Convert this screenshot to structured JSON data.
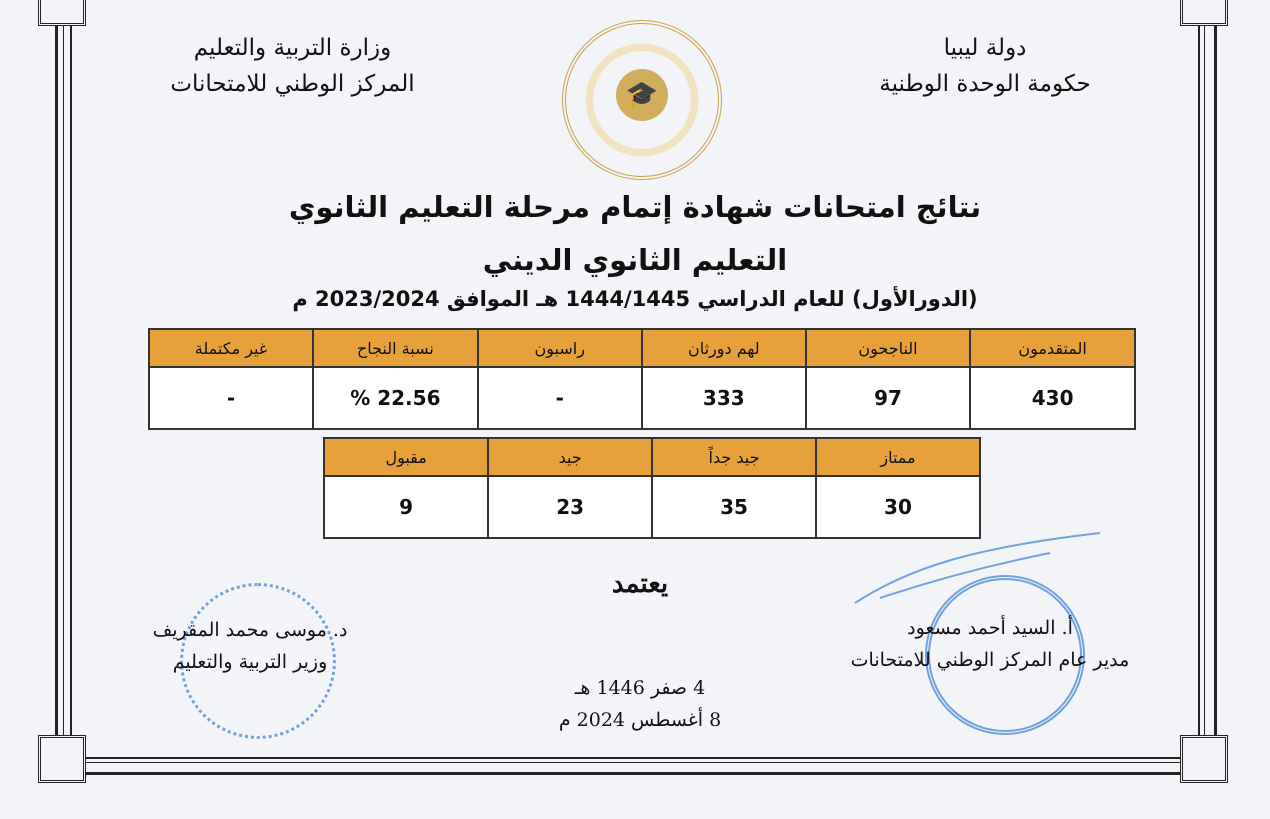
{
  "header_right": {
    "line1": "دولة ليبيا",
    "line2": "حكومة الوحدة الوطنية"
  },
  "header_left": {
    "line1": "وزارة التربية والتعليم",
    "line2": "المركز الوطني للامتحانات"
  },
  "title": {
    "line1": "نتائج امتحانات شهادة إتمام مرحلة التعليم الثانوي",
    "line2": "التعليم الثانوي الديني",
    "line3": "(الدورالأول) للعام الدراسي 1444/1445 هـ الموافق 2023/2024 م"
  },
  "results_table": {
    "headers": [
      "المتقدمون",
      "الناجحون",
      "لهم دورثان",
      "راسبون",
      "نسبة النجاح",
      "غير مكتملة"
    ],
    "values": [
      "430",
      "97",
      "333",
      "-",
      "22.56  %",
      "-"
    ]
  },
  "grades_table": {
    "headers": [
      "ممتاز",
      "جيد جداً",
      "جيد",
      "مقبول"
    ],
    "values": [
      "30",
      "35",
      "23",
      "9"
    ]
  },
  "approval": "يعتمد",
  "date": {
    "hijri": "4 صفر 1446 هـ",
    "gregorian": "8 أغسطس 2024 م"
  },
  "signatory_right": {
    "name": "أ. السيد أحمد مسعود",
    "role": "مدير عام المركز الوطني للامتحانات"
  },
  "signatory_left": {
    "name": "د. موسى محمد المقريف",
    "role": "وزير التربية والتعليم"
  },
  "colors": {
    "table_header": "#e6a13b",
    "stamp": "#3a7fd0",
    "logo": "#c9a14a"
  }
}
